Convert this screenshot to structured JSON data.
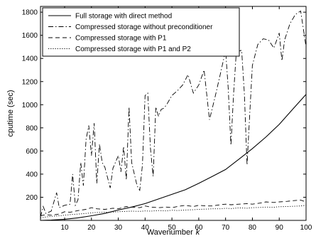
{
  "chart_data": {
    "type": "line",
    "title": "",
    "xlabel": "Wavenumber",
    "xlabel_var": "k",
    "ylabel": "cputime (sec)",
    "xlim": [
      1,
      100
    ],
    "ylim": [
      0,
      1850
    ],
    "xticks": [
      10,
      20,
      30,
      40,
      50,
      60,
      70,
      80,
      90,
      100
    ],
    "yticks": [
      200,
      400,
      600,
      800,
      1000,
      1200,
      1400,
      1600,
      1800
    ],
    "grid": false,
    "legend_position": "top-left",
    "series": [
      {
        "name": "Full storage with direct method",
        "style": "solid",
        "color": "#000000",
        "points": [
          [
            1,
            0
          ],
          [
            5,
            3
          ],
          [
            10,
            10
          ],
          [
            15,
            22
          ],
          [
            20,
            40
          ],
          [
            25,
            60
          ],
          [
            30,
            90
          ],
          [
            35,
            115
          ],
          [
            40,
            145
          ],
          [
            45,
            185
          ],
          [
            50,
            225
          ],
          [
            55,
            265
          ],
          [
            60,
            320
          ],
          [
            65,
            380
          ],
          [
            70,
            440
          ],
          [
            75,
            530
          ],
          [
            80,
            620
          ],
          [
            85,
            720
          ],
          [
            90,
            830
          ],
          [
            95,
            960
          ],
          [
            100,
            1090
          ]
        ]
      },
      {
        "name": "Compressed storage without preconditioner",
        "style": "dashdot",
        "color": "#000000",
        "points": [
          [
            1,
            30
          ],
          [
            2,
            120
          ],
          [
            3,
            60
          ],
          [
            5,
            80
          ],
          [
            7,
            240
          ],
          [
            8,
            110
          ],
          [
            10,
            130
          ],
          [
            12,
            140
          ],
          [
            13,
            400
          ],
          [
            14,
            130
          ],
          [
            15,
            180
          ],
          [
            16,
            500
          ],
          [
            17,
            300
          ],
          [
            18,
            700
          ],
          [
            19,
            820
          ],
          [
            20,
            560
          ],
          [
            21,
            840
          ],
          [
            22,
            320
          ],
          [
            23,
            660
          ],
          [
            24,
            500
          ],
          [
            25,
            460
          ],
          [
            27,
            280
          ],
          [
            28,
            450
          ],
          [
            30,
            560
          ],
          [
            31,
            420
          ],
          [
            32,
            640
          ],
          [
            33,
            350
          ],
          [
            34,
            980
          ],
          [
            35,
            500
          ],
          [
            37,
            300
          ],
          [
            38,
            260
          ],
          [
            39,
            480
          ],
          [
            40,
            1080
          ],
          [
            41,
            1100
          ],
          [
            42,
            620
          ],
          [
            43,
            380
          ],
          [
            44,
            980
          ],
          [
            45,
            900
          ],
          [
            46,
            960
          ],
          [
            47,
            970
          ],
          [
            48,
            1000
          ],
          [
            50,
            1080
          ],
          [
            52,
            1120
          ],
          [
            54,
            1170
          ],
          [
            56,
            1260
          ],
          [
            58,
            1100
          ],
          [
            60,
            1170
          ],
          [
            62,
            1300
          ],
          [
            64,
            870
          ],
          [
            66,
            1060
          ],
          [
            68,
            1260
          ],
          [
            70,
            1470
          ],
          [
            71,
            1140
          ],
          [
            72,
            650
          ],
          [
            73,
            1100
          ],
          [
            74,
            1460
          ],
          [
            76,
            1470
          ],
          [
            77,
            1100
          ],
          [
            78,
            480
          ],
          [
            79,
            920
          ],
          [
            80,
            1340
          ],
          [
            82,
            1520
          ],
          [
            84,
            1570
          ],
          [
            86,
            1560
          ],
          [
            88,
            1490
          ],
          [
            90,
            1620
          ],
          [
            91,
            1380
          ],
          [
            92,
            1560
          ],
          [
            94,
            1700
          ],
          [
            96,
            1780
          ],
          [
            98,
            1810
          ],
          [
            100,
            1500
          ]
        ]
      },
      {
        "name": "Compressed storage with P1",
        "style": "dashed",
        "color": "#000000",
        "points": [
          [
            1,
            40
          ],
          [
            3,
            50
          ],
          [
            5,
            45
          ],
          [
            8,
            55
          ],
          [
            10,
            75
          ],
          [
            12,
            70
          ],
          [
            15,
            85
          ],
          [
            18,
            95
          ],
          [
            20,
            110
          ],
          [
            22,
            100
          ],
          [
            25,
            95
          ],
          [
            28,
            105
          ],
          [
            30,
            100
          ],
          [
            33,
            120
          ],
          [
            35,
            115
          ],
          [
            38,
            110
          ],
          [
            40,
            125
          ],
          [
            42,
            115
          ],
          [
            45,
            110
          ],
          [
            48,
            115
          ],
          [
            50,
            110
          ],
          [
            52,
            120
          ],
          [
            55,
            130
          ],
          [
            58,
            120
          ],
          [
            60,
            130
          ],
          [
            63,
            125
          ],
          [
            65,
            125
          ],
          [
            68,
            135
          ],
          [
            70,
            140
          ],
          [
            72,
            135
          ],
          [
            75,
            140
          ],
          [
            78,
            145
          ],
          [
            80,
            140
          ],
          [
            83,
            150
          ],
          [
            85,
            160
          ],
          [
            88,
            155
          ],
          [
            90,
            160
          ],
          [
            93,
            165
          ],
          [
            95,
            170
          ],
          [
            98,
            175
          ],
          [
            100,
            160
          ]
        ]
      },
      {
        "name": "Compressed storage with P1 and P2",
        "style": "dotted",
        "color": "#000000",
        "points": [
          [
            1,
            20
          ],
          [
            3,
            30
          ],
          [
            5,
            35
          ],
          [
            8,
            40
          ],
          [
            10,
            45
          ],
          [
            12,
            50
          ],
          [
            15,
            55
          ],
          [
            18,
            60
          ],
          [
            20,
            65
          ],
          [
            22,
            68
          ],
          [
            25,
            70
          ],
          [
            28,
            72
          ],
          [
            30,
            75
          ],
          [
            33,
            78
          ],
          [
            35,
            80
          ],
          [
            38,
            78
          ],
          [
            40,
            82
          ],
          [
            42,
            80
          ],
          [
            45,
            85
          ],
          [
            48,
            82
          ],
          [
            50,
            88
          ],
          [
            52,
            85
          ],
          [
            55,
            90
          ],
          [
            58,
            92
          ],
          [
            60,
            95
          ],
          [
            63,
            98
          ],
          [
            65,
            100
          ],
          [
            68,
            100
          ],
          [
            70,
            105
          ],
          [
            72,
            102
          ],
          [
            75,
            108
          ],
          [
            78,
            105
          ],
          [
            80,
            110
          ],
          [
            83,
            112
          ],
          [
            85,
            115
          ],
          [
            88,
            114
          ],
          [
            90,
            118
          ],
          [
            93,
            120
          ],
          [
            95,
            122
          ],
          [
            98,
            125
          ],
          [
            100,
            130
          ]
        ]
      }
    ]
  }
}
